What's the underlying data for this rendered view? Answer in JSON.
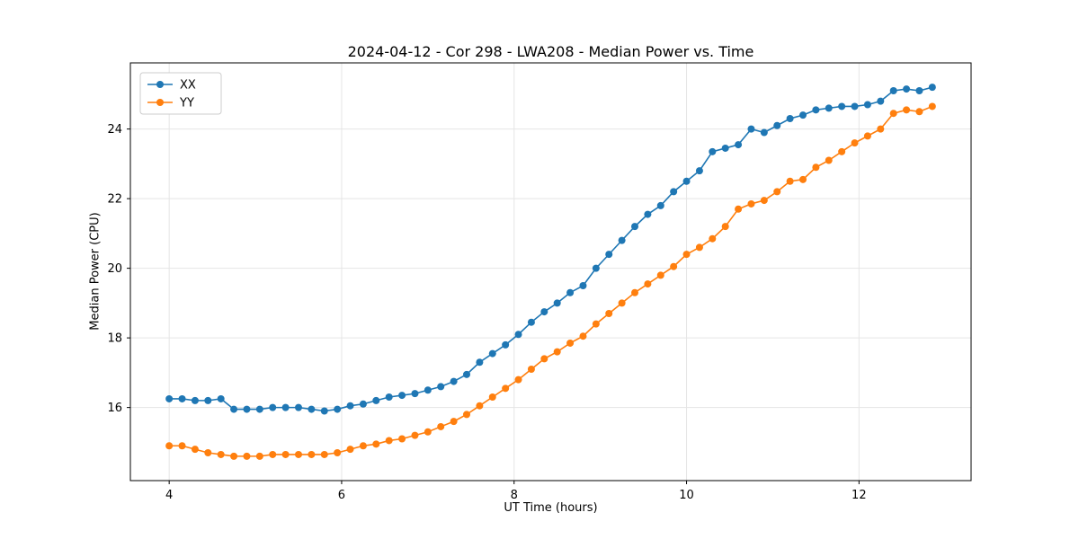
{
  "chart_data": {
    "type": "line",
    "title": "2024-04-12 - Cor 298 - LWA208 - Median Power vs. Time",
    "xlabel": "UT Time (hours)",
    "ylabel": "Median Power (CPU)",
    "xlim": [
      3.55,
      13.3
    ],
    "ylim": [
      13.9,
      25.9
    ],
    "xticks": [
      4,
      6,
      8,
      10,
      12
    ],
    "yticks": [
      16,
      18,
      20,
      22,
      24
    ],
    "grid": true,
    "grid_color": "#e5e5e5",
    "legend_position": "upper left",
    "x": [
      4.0,
      4.15,
      4.3,
      4.45,
      4.6,
      4.75,
      4.9,
      5.05,
      5.2,
      5.35,
      5.5,
      5.65,
      5.8,
      5.95,
      6.1,
      6.25,
      6.4,
      6.55,
      6.7,
      6.85,
      7.0,
      7.15,
      7.3,
      7.45,
      7.6,
      7.75,
      7.9,
      8.05,
      8.2,
      8.35,
      8.5,
      8.65,
      8.8,
      8.95,
      9.1,
      9.25,
      9.4,
      9.55,
      9.7,
      9.85,
      10.0,
      10.15,
      10.3,
      10.45,
      10.6,
      10.75,
      10.9,
      11.05,
      11.2,
      11.35,
      11.5,
      11.65,
      11.8,
      11.95,
      12.1,
      12.25,
      12.4,
      12.55,
      12.7,
      12.85
    ],
    "series": [
      {
        "name": "XX",
        "color": "#1f77b4",
        "values": [
          16.25,
          16.25,
          16.2,
          16.2,
          16.25,
          15.95,
          15.95,
          15.95,
          16.0,
          16.0,
          16.0,
          15.95,
          15.9,
          15.95,
          16.05,
          16.1,
          16.2,
          16.3,
          16.35,
          16.4,
          16.5,
          16.6,
          16.75,
          16.95,
          17.3,
          17.55,
          17.8,
          18.1,
          18.45,
          18.75,
          19.0,
          19.3,
          19.5,
          20.0,
          20.4,
          20.8,
          21.2,
          21.55,
          21.8,
          22.2,
          22.5,
          22.8,
          23.35,
          23.45,
          23.55,
          24.0,
          23.9,
          24.1,
          24.3,
          24.4,
          24.55,
          24.6,
          24.65,
          24.65,
          24.7,
          24.8,
          25.1,
          25.15,
          25.1,
          25.2
        ]
      },
      {
        "name": "YY",
        "color": "#ff7f0e",
        "values": [
          14.9,
          14.9,
          14.8,
          14.7,
          14.65,
          14.6,
          14.6,
          14.6,
          14.65,
          14.65,
          14.65,
          14.65,
          14.65,
          14.7,
          14.8,
          14.9,
          14.95,
          15.05,
          15.1,
          15.2,
          15.3,
          15.45,
          15.6,
          15.8,
          16.05,
          16.3,
          16.55,
          16.8,
          17.1,
          17.4,
          17.6,
          17.85,
          18.05,
          18.4,
          18.7,
          19.0,
          19.3,
          19.55,
          19.8,
          20.05,
          20.4,
          20.6,
          20.85,
          21.2,
          21.7,
          21.85,
          21.95,
          22.2,
          22.5,
          22.55,
          22.9,
          23.1,
          23.35,
          23.6,
          23.8,
          24.0,
          24.45,
          24.55,
          24.5,
          24.65
        ]
      }
    ]
  }
}
